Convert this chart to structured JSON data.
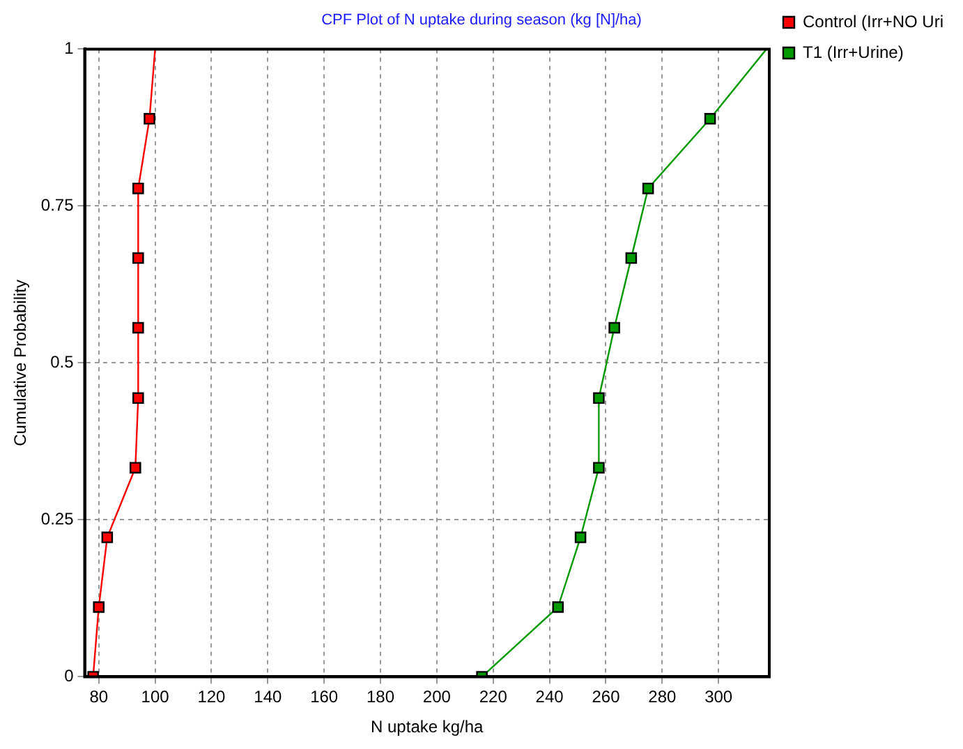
{
  "chart_data": {
    "type": "line",
    "title": "CPF Plot of N uptake during season (kg [N]/ha)",
    "xlabel": "N uptake kg/ha",
    "ylabel": "Cumulative Probability",
    "series": [
      {
        "name": "Control (Irr+NO Uri",
        "color": "#ff0000",
        "x": [
          78,
          80,
          83,
          93,
          94,
          94,
          94,
          94,
          98,
          100
        ],
        "values": [
          0,
          0.111,
          0.222,
          0.333,
          0.444,
          0.556,
          0.667,
          0.778,
          0.889,
          1
        ]
      },
      {
        "name": "T1 (Irr+Urine)",
        "color": "#009900",
        "x": [
          216,
          243,
          251,
          257.5,
          257.5,
          263,
          269,
          275,
          297,
          317
        ],
        "values": [
          0,
          0.111,
          0.222,
          0.333,
          0.444,
          0.556,
          0.667,
          0.778,
          0.889,
          1
        ]
      }
    ],
    "xlim": [
      75,
      318
    ],
    "xticks": [
      80,
      100,
      120,
      140,
      160,
      180,
      200,
      220,
      240,
      260,
      280,
      300
    ],
    "ylim": [
      0,
      1
    ],
    "yticks": [
      0,
      0.25,
      0.5,
      0.75,
      1
    ],
    "grid": true,
    "legend": "top right",
    "marker": "square",
    "line_style": "solid"
  }
}
